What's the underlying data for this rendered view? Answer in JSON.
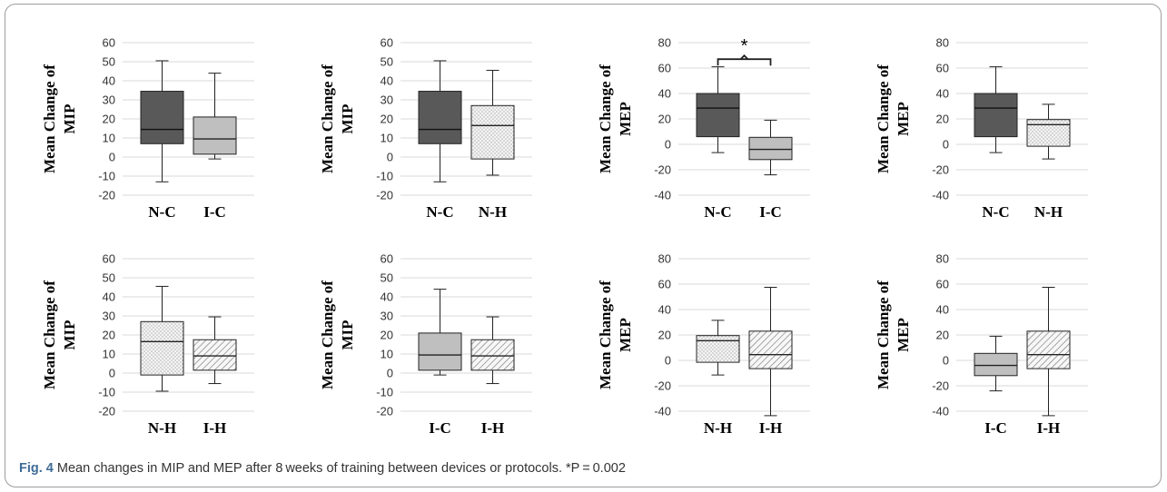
{
  "caption": {
    "label": "Fig. 4",
    "text": "Mean changes in MIP and MEP after 8 weeks of training between devices or protocols. *P = 0.002"
  },
  "styles": {
    "N-C": {
      "fill": "#595959",
      "pattern": "none"
    },
    "I-C": {
      "fill": "#bfbfbf",
      "pattern": "none"
    },
    "N-H": {
      "fill": "#f2f2f2",
      "pattern": "dots"
    },
    "I-H": {
      "fill": "#f2f2f2",
      "pattern": "diagonal-stripes"
    }
  },
  "chart_data": [
    {
      "type": "box",
      "ylabel": [
        "Mean Change of",
        "MIP"
      ],
      "ylim": [
        -20,
        60
      ],
      "yticks": [
        -20,
        -10,
        0,
        10,
        20,
        30,
        40,
        50,
        60
      ],
      "grid": true,
      "groups": [
        {
          "name": "N-C",
          "min": -13,
          "q1": 7,
          "median": 14.5,
          "q3": 34.5,
          "max": 50.5
        },
        {
          "name": "I-C",
          "min": -1,
          "q1": 1.5,
          "median": 9.5,
          "q3": 21,
          "max": 44
        }
      ]
    },
    {
      "type": "box",
      "ylabel": [
        "Mean Change of",
        "MIP"
      ],
      "ylim": [
        -20,
        60
      ],
      "yticks": [
        -20,
        -10,
        0,
        10,
        20,
        30,
        40,
        50,
        60
      ],
      "grid": true,
      "groups": [
        {
          "name": "N-C",
          "min": -13,
          "q1": 7,
          "median": 14.5,
          "q3": 34.5,
          "max": 50.5
        },
        {
          "name": "N-H",
          "min": -9.5,
          "q1": -1,
          "median": 16.5,
          "q3": 27,
          "max": 45.5
        }
      ]
    },
    {
      "type": "box",
      "ylabel": [
        "Mean Change of",
        "MEP"
      ],
      "ylim": [
        -40,
        80
      ],
      "yticks": [
        -40,
        -20,
        0,
        20,
        40,
        60,
        80
      ],
      "grid": true,
      "groups": [
        {
          "name": "N-C",
          "min": -6.5,
          "q1": 6,
          "median": 28.5,
          "q3": 40,
          "max": 61
        },
        {
          "name": "I-C",
          "min": -24,
          "q1": -12,
          "median": -4,
          "q3": 5.5,
          "max": 19
        }
      ],
      "annotation": {
        "text": "*",
        "between": [
          "N-C",
          "I-C"
        ],
        "y": 67
      }
    },
    {
      "type": "box",
      "ylabel": [
        "Mean Change of",
        "MEP"
      ],
      "ylim": [
        -40,
        80
      ],
      "yticks": [
        -40,
        -20,
        0,
        20,
        40,
        60,
        80
      ],
      "grid": true,
      "groups": [
        {
          "name": "N-C",
          "min": -6.5,
          "q1": 6,
          "median": 28.5,
          "q3": 40,
          "max": 61
        },
        {
          "name": "N-H",
          "min": -11.5,
          "q1": -1.5,
          "median": 15.5,
          "q3": 19.5,
          "max": 31.5
        }
      ]
    },
    {
      "type": "box",
      "ylabel": [
        "Mean Change of",
        "MIP"
      ],
      "ylim": [
        -20,
        60
      ],
      "yticks": [
        -20,
        -10,
        0,
        10,
        20,
        30,
        40,
        50,
        60
      ],
      "grid": true,
      "groups": [
        {
          "name": "N-H",
          "min": -9.5,
          "q1": -1,
          "median": 16.5,
          "q3": 27,
          "max": 45.5
        },
        {
          "name": "I-H",
          "min": -5.5,
          "q1": 1.5,
          "median": 9,
          "q3": 17.5,
          "max": 29.5
        }
      ]
    },
    {
      "type": "box",
      "ylabel": [
        "Mean Change of",
        "MIP"
      ],
      "ylim": [
        -20,
        60
      ],
      "yticks": [
        -20,
        -10,
        0,
        10,
        20,
        30,
        40,
        50,
        60
      ],
      "grid": true,
      "groups": [
        {
          "name": "I-C",
          "min": -1,
          "q1": 1.5,
          "median": 9.5,
          "q3": 21,
          "max": 44
        },
        {
          "name": "I-H",
          "min": -5.5,
          "q1": 1.5,
          "median": 9,
          "q3": 17.5,
          "max": 29.5
        }
      ]
    },
    {
      "type": "box",
      "ylabel": [
        "Mean Change of",
        "MEP"
      ],
      "ylim": [
        -40,
        80
      ],
      "yticks": [
        -40,
        -20,
        0,
        20,
        40,
        60,
        80
      ],
      "grid": true,
      "groups": [
        {
          "name": "N-H",
          "min": -11.5,
          "q1": -1.5,
          "median": 15.5,
          "q3": 19.5,
          "max": 31.5
        },
        {
          "name": "I-H",
          "min": -43.5,
          "q1": -6.5,
          "median": 4.5,
          "q3": 23,
          "max": 57.5
        }
      ]
    },
    {
      "type": "box",
      "ylabel": [
        "Mean Change of",
        "MEP"
      ],
      "ylim": [
        -40,
        80
      ],
      "yticks": [
        -40,
        -20,
        0,
        20,
        40,
        60,
        80
      ],
      "grid": true,
      "groups": [
        {
          "name": "I-C",
          "min": -24,
          "q1": -12,
          "median": -4,
          "q3": 5.5,
          "max": 19
        },
        {
          "name": "I-H",
          "min": -43.5,
          "q1": -6.5,
          "median": 4.5,
          "q3": 23,
          "max": 57.5
        }
      ]
    }
  ]
}
